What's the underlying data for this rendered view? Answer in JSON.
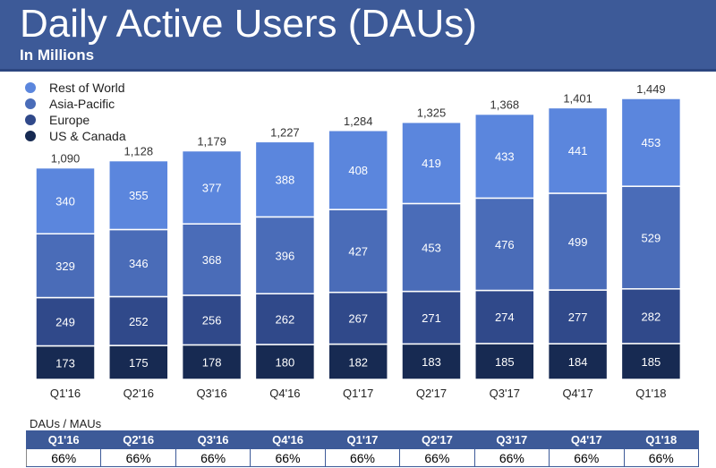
{
  "header": {
    "title": "Daily Active Users (DAUs)",
    "subtitle": "In Millions"
  },
  "colors": {
    "header": "#3d5a98",
    "Rest of World": "#5b86dd",
    "Asia-Pacific": "#4a6cb8",
    "Europe": "#30498a",
    "US & Canada": "#172a52"
  },
  "chart_data": {
    "type": "bar",
    "stacked": true,
    "title": "Daily Active Users (DAUs)",
    "subtitle": "In Millions",
    "categories": [
      "Q1'16",
      "Q2'16",
      "Q3'16",
      "Q4'16",
      "Q1'17",
      "Q2'17",
      "Q3'17",
      "Q4'17",
      "Q1'18"
    ],
    "totals": [
      "1,090",
      "1,128",
      "1,179",
      "1,227",
      "1,284",
      "1,325",
      "1,368",
      "1,401",
      "1,449"
    ],
    "series": [
      {
        "name": "US & Canada",
        "values": [
          173,
          175,
          178,
          180,
          182,
          183,
          185,
          184,
          185
        ]
      },
      {
        "name": "Europe",
        "values": [
          249,
          252,
          256,
          262,
          267,
          271,
          274,
          277,
          282
        ]
      },
      {
        "name": "Asia-Pacific",
        "values": [
          329,
          346,
          368,
          396,
          427,
          453,
          476,
          499,
          529
        ]
      },
      {
        "name": "Rest of World",
        "values": [
          340,
          355,
          377,
          388,
          408,
          419,
          433,
          441,
          453
        ]
      }
    ],
    "legend_order": [
      "Rest of World",
      "Asia-Pacific",
      "Europe",
      "US & Canada"
    ],
    "legend_placement": "top-left",
    "grid": false,
    "ylim": [
      0,
      1449
    ]
  },
  "table": {
    "label": "DAUs / MAUs",
    "headers": [
      "Q1'16",
      "Q2'16",
      "Q3'16",
      "Q4'16",
      "Q1'17",
      "Q2'17",
      "Q3'17",
      "Q4'17",
      "Q1'18"
    ],
    "values": [
      "66%",
      "66%",
      "66%",
      "66%",
      "66%",
      "66%",
      "66%",
      "66%",
      "66%"
    ]
  }
}
